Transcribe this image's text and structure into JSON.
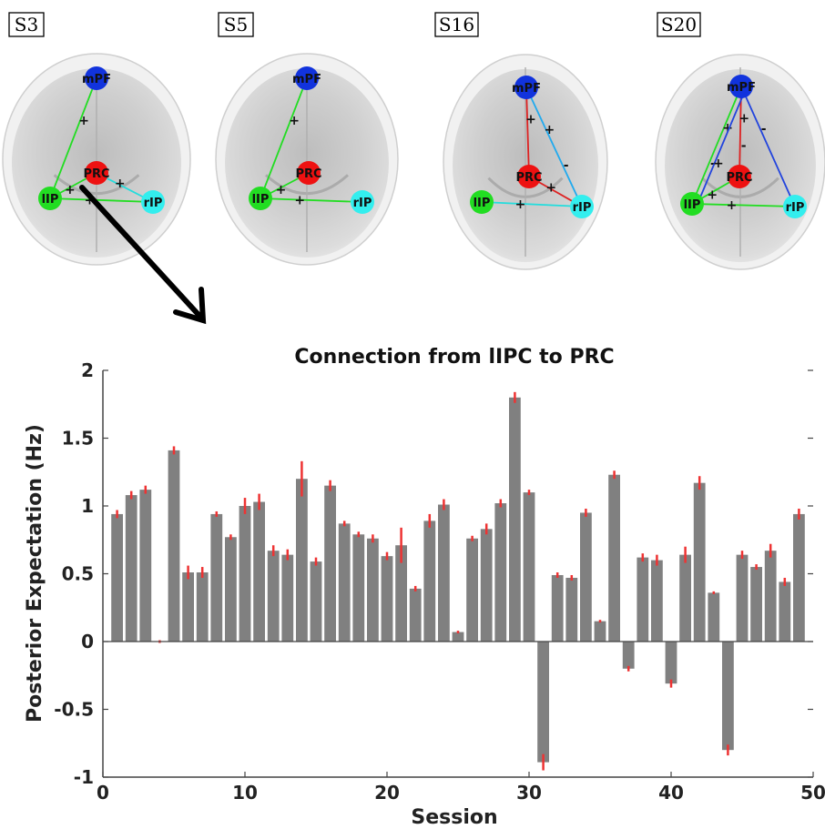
{
  "panels": [
    {
      "label": "S3",
      "edges": [
        {
          "from": "mPF",
          "to": "lIP",
          "color": "#22dd22",
          "signs": [
            "+"
          ]
        },
        {
          "from": "lIP",
          "to": "PRC",
          "color": "#22dd22",
          "signs": [
            "+"
          ]
        },
        {
          "from": "lIP",
          "to": "rIP",
          "color": "#22dd22",
          "signs": [
            "+"
          ]
        },
        {
          "from": "PRC",
          "to": "rIP",
          "color": "#22dddd",
          "signs": [
            "+"
          ]
        }
      ]
    },
    {
      "label": "S5",
      "edges": [
        {
          "from": "mPF",
          "to": "lIP",
          "color": "#22dd22",
          "signs": [
            "+"
          ]
        },
        {
          "from": "lIP",
          "to": "PRC",
          "color": "#22dd22",
          "signs": [
            "+"
          ]
        },
        {
          "from": "lIP",
          "to": "rIP",
          "color": "#22dd22",
          "signs": [
            "+"
          ]
        }
      ]
    },
    {
      "label": "S16",
      "edges": [
        {
          "from": "mPF",
          "to": "PRC",
          "color": "#dd2222",
          "signs": [
            "+"
          ]
        },
        {
          "from": "mPF",
          "to": "rIP",
          "color": "#22aaee",
          "signs": [
            "+",
            "-"
          ]
        },
        {
          "from": "PRC",
          "to": "rIP",
          "color": "#dd2222",
          "signs": [
            "+"
          ]
        },
        {
          "from": "lIP",
          "to": "rIP",
          "color": "#22dddd",
          "signs": [
            "+"
          ]
        }
      ]
    },
    {
      "label": "S20",
      "edges": [
        {
          "from": "mPF",
          "to": "lIP",
          "color": "#22dd22",
          "signs": [
            "+",
            "-"
          ]
        },
        {
          "from": "mPF",
          "to": "PRC",
          "color": "#dd2222",
          "signs": [
            "+",
            "-"
          ]
        },
        {
          "from": "mPF",
          "to": "rIP",
          "color": "#2244dd",
          "signs": [
            "-"
          ]
        },
        {
          "from": "lIP",
          "to": "PRC",
          "color": "#22dd22",
          "signs": [
            "+"
          ]
        },
        {
          "from": "lIP",
          "to": "rIP",
          "color": "#22dd22",
          "signs": [
            "+"
          ]
        },
        {
          "from": "lIP",
          "to": "mPF",
          "color": "#2244dd",
          "signs": [
            "+"
          ]
        }
      ]
    }
  ],
  "nodes": {
    "mPF": {
      "label": "mPF",
      "color": "#1133dd"
    },
    "PRC": {
      "label": "PRC",
      "color": "#ee1111"
    },
    "lIP": {
      "label": "lIP",
      "color": "#22dd22"
    },
    "rIP": {
      "label": "rIP",
      "color": "#33eeee"
    }
  },
  "chart_data": {
    "type": "bar",
    "title": "Connection from lIPC to PRC",
    "xlabel": "Session",
    "ylabel": "Posterior Expectation (Hz)",
    "xlim": [
      0,
      50
    ],
    "ylim": [
      -1,
      2
    ],
    "xticks": [
      0,
      10,
      20,
      30,
      40,
      50
    ],
    "yticks": [
      -1,
      -0.5,
      0,
      0.5,
      1,
      1.5,
      2
    ],
    "bar_color": "#808080",
    "error_color": "#ee3333",
    "x": [
      1,
      2,
      3,
      4,
      5,
      6,
      7,
      8,
      9,
      10,
      11,
      12,
      13,
      14,
      15,
      16,
      17,
      18,
      19,
      20,
      21,
      22,
      23,
      24,
      25,
      26,
      27,
      28,
      29,
      30,
      31,
      32,
      33,
      34,
      35,
      36,
      37,
      38,
      39,
      40,
      41,
      42,
      43,
      44,
      45,
      46,
      47,
      48,
      49
    ],
    "values": [
      0.94,
      1.08,
      1.12,
      0.0,
      1.41,
      0.51,
      0.51,
      0.94,
      0.77,
      1.0,
      1.03,
      0.67,
      0.64,
      1.2,
      0.59,
      1.15,
      0.87,
      0.79,
      0.76,
      0.63,
      0.71,
      0.39,
      0.89,
      1.01,
      0.07,
      0.76,
      0.83,
      1.02,
      1.8,
      1.1,
      -0.89,
      0.49,
      0.47,
      0.95,
      0.15,
      1.23,
      -0.2,
      0.62,
      0.6,
      -0.31,
      0.64,
      1.17,
      0.36,
      -0.8,
      0.64,
      0.55,
      0.67,
      0.44,
      0.94
    ],
    "errors": [
      0.03,
      0.03,
      0.03,
      0.01,
      0.03,
      0.05,
      0.04,
      0.02,
      0.02,
      0.06,
      0.06,
      0.04,
      0.04,
      0.13,
      0.03,
      0.04,
      0.02,
      0.02,
      0.03,
      0.03,
      0.13,
      0.02,
      0.05,
      0.04,
      0.01,
      0.02,
      0.04,
      0.03,
      0.04,
      0.02,
      0.06,
      0.02,
      0.02,
      0.03,
      0.01,
      0.03,
      0.02,
      0.03,
      0.04,
      0.03,
      0.06,
      0.05,
      0.01,
      0.04,
      0.03,
      0.02,
      0.05,
      0.03,
      0.04
    ]
  }
}
